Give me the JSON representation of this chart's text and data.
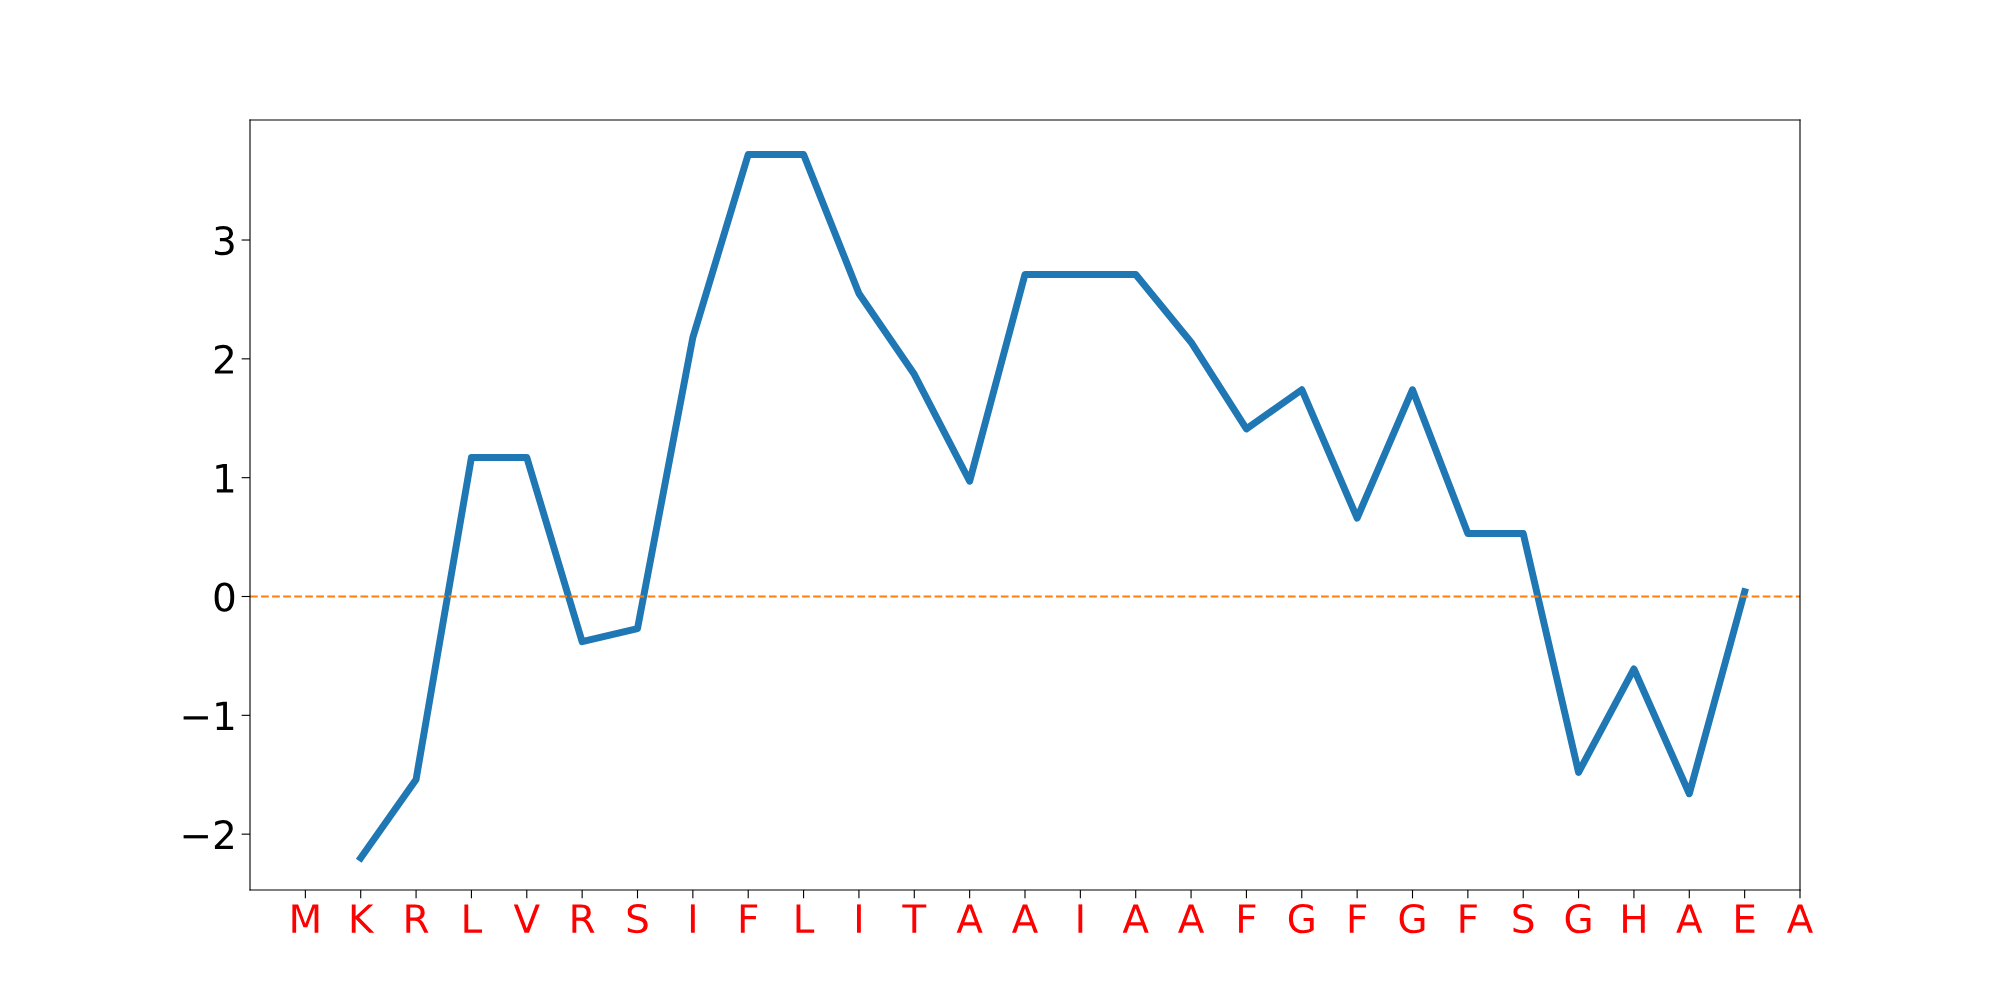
{
  "chart_data": {
    "type": "line",
    "categories": [
      "M",
      "K",
      "R",
      "L",
      "V",
      "R",
      "S",
      "I",
      "F",
      "L",
      "I",
      "T",
      "A",
      "A",
      "I",
      "A",
      "A",
      "F",
      "G",
      "F",
      "G",
      "F",
      "S",
      "G",
      "H",
      "A",
      "E",
      "A"
    ],
    "series": [
      {
        "color": "#1f77b4",
        "values": [
          null,
          -2.2,
          -1.54,
          1.17,
          1.17,
          -0.38,
          -0.27,
          2.18,
          3.72,
          3.72,
          2.55,
          1.87,
          0.97,
          2.71,
          2.71,
          2.71,
          2.14,
          1.41,
          1.74,
          0.66,
          1.74,
          0.53,
          0.53,
          -1.48,
          -0.61,
          -1.66,
          0.04,
          null
        ]
      }
    ],
    "ylim": [
      -2.47,
      4.01
    ],
    "yticks": [
      {
        "value": -2,
        "label": "−2"
      },
      {
        "value": -1,
        "label": "−1"
      },
      0,
      1,
      2,
      3
    ],
    "ref_lines": [
      {
        "axis": "y",
        "value": 0,
        "color": "#ff7f0e",
        "line_style": "dashed"
      }
    ],
    "grid": false,
    "legend": false,
    "marker": "none",
    "line_style": "solid"
  }
}
